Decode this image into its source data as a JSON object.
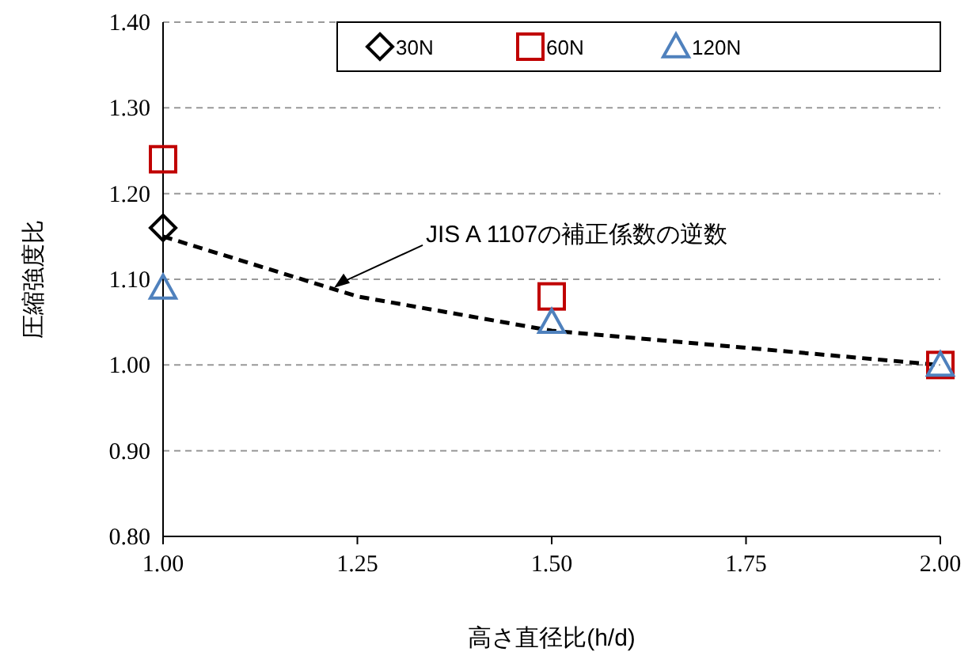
{
  "chart_data": {
    "type": "scatter",
    "xlabel": "高さ直径比(h/d)",
    "ylabel": "圧縮強度比",
    "xlim": [
      1.0,
      2.0
    ],
    "xticks": [
      {
        "value": 1,
        "label": "1.00"
      },
      {
        "value": 1.25,
        "label": "1.25"
      },
      {
        "value": 1.5,
        "label": "1.50"
      },
      {
        "value": 1.75,
        "label": "1.75"
      },
      {
        "value": 2,
        "label": "2.00"
      }
    ],
    "ylim": [
      0.8,
      1.4
    ],
    "yticks": [
      {
        "value": 0.8,
        "label": "0.80"
      },
      {
        "value": 0.9,
        "label": "0.90"
      },
      {
        "value": 1.0,
        "label": "1.00"
      },
      {
        "value": 1.1,
        "label": "1.10"
      },
      {
        "value": 1.2,
        "label": "1.20"
      },
      {
        "value": 1.3,
        "label": "1.30"
      },
      {
        "value": 1.4,
        "label": "1.40"
      }
    ],
    "grid": "y",
    "legend": "top right",
    "series": [
      {
        "type": "line",
        "line_style": "dashed",
        "marker": "none",
        "color": "#000000",
        "x": [
          1.0,
          1.25,
          1.5,
          1.75,
          2.0
        ],
        "values": [
          1.15,
          1.08,
          1.04,
          1.02,
          1.0
        ]
      },
      {
        "name": "30N",
        "marker": "diamond",
        "color": "#000000",
        "x": [
          1.0
        ],
        "values": [
          1.16
        ]
      },
      {
        "name": "60N",
        "marker": "square",
        "color": "#c00000",
        "x": [
          1.0,
          1.5,
          2.0
        ],
        "values": [
          1.24,
          1.08,
          1.0
        ]
      },
      {
        "name": "120N",
        "marker": "triangle",
        "color": "#4f81bd",
        "x": [
          1.0,
          1.5,
          2.0
        ],
        "values": [
          1.09,
          1.05,
          1.0
        ]
      }
    ],
    "annotations": [
      {
        "text": "JIS A 1107の補正係数の逆数",
        "x": 1.22,
        "y": 1.09
      }
    ]
  }
}
